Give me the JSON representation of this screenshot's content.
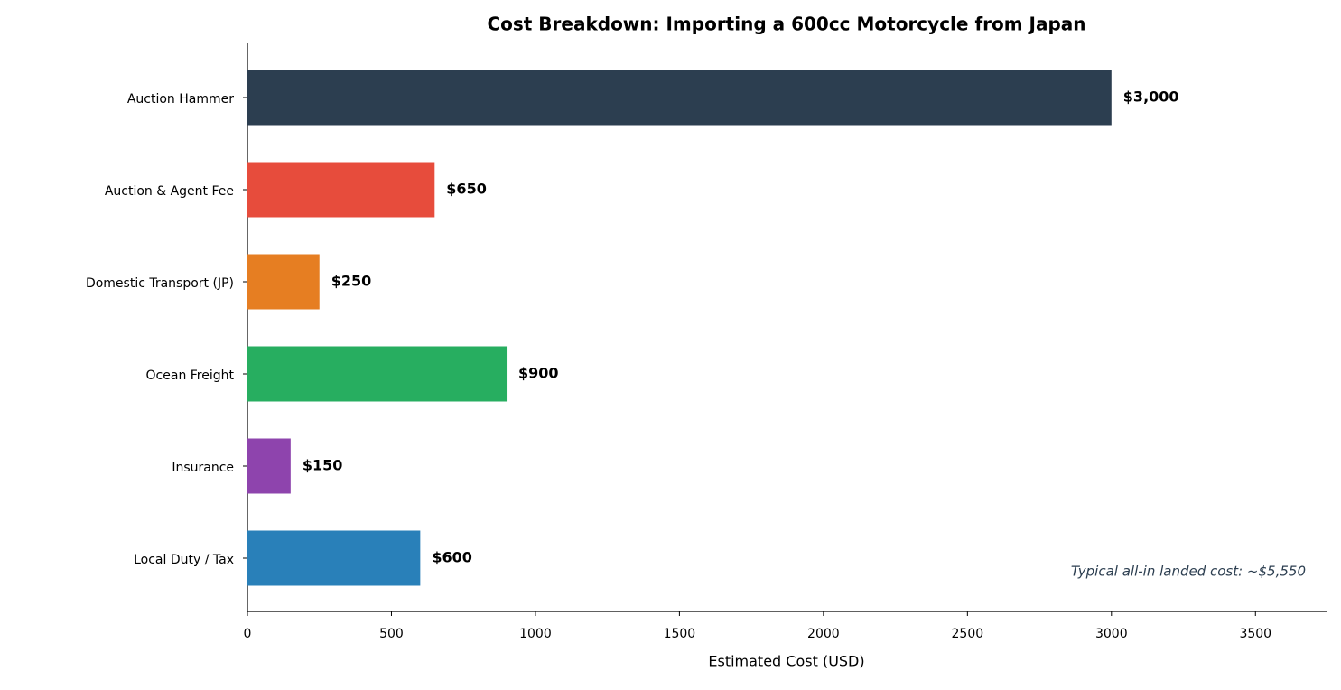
{
  "chart_data": {
    "type": "barh",
    "title": "Cost Breakdown: Importing a 600cc Motorcycle from Japan",
    "xlabel": "Estimated Cost (USD)",
    "categories": [
      "Auction Hammer",
      "Auction & Agent Fee",
      "Domestic Transport (JP)",
      "Ocean Freight",
      "Insurance",
      "Local Duty / Tax"
    ],
    "values": [
      3000,
      650,
      250,
      900,
      150,
      600
    ],
    "value_labels": [
      "$3,000",
      "$650",
      "$250",
      "$900",
      "$150",
      "$600"
    ],
    "colors": [
      "#2c3e50",
      "#e74c3c",
      "#e67e22",
      "#27ae60",
      "#8e44ad",
      "#2980b9"
    ],
    "xlim": [
      0,
      3750
    ],
    "xticks": [
      0,
      500,
      1000,
      1500,
      2000,
      2500,
      3000,
      3500
    ],
    "annotation": "Typical all-in landed cost: ~$5,550"
  }
}
